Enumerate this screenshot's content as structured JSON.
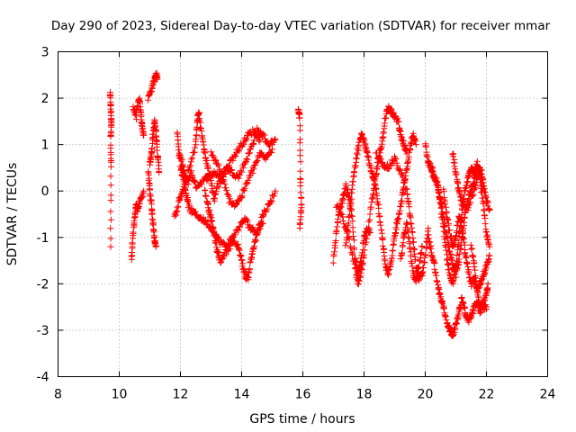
{
  "chart_data": {
    "type": "scatter",
    "title": "Day 290 of 2023, Sidereal Day-to-day VTEC variation (SDTVAR) for receiver mmar",
    "xlabel": "GPS time / hours",
    "ylabel": "SDTVAR / TECUs",
    "xlim": [
      8,
      24
    ],
    "ylim": [
      -4,
      3
    ],
    "xticks": [
      8,
      10,
      12,
      14,
      16,
      18,
      20,
      22,
      24
    ],
    "yticks": [
      -4,
      -3,
      -2,
      -1,
      0,
      1,
      2,
      3
    ],
    "grid": true,
    "marker": "+",
    "color": "#ff0000",
    "traces": [
      [
        [
          9.7,
          2.1
        ],
        [
          9.72,
          1.8
        ],
        [
          9.74,
          1.5
        ],
        [
          9.72,
          1.2
        ],
        [
          9.73,
          0.5
        ],
        [
          9.72,
          -1.2
        ]
      ],
      [
        [
          10.4,
          -1.5
        ],
        [
          10.45,
          -1.0
        ],
        [
          10.5,
          -0.6
        ],
        [
          10.55,
          -0.3
        ],
        [
          10.6,
          -0.4
        ],
        [
          10.7,
          -0.2
        ],
        [
          10.8,
          0.0
        ]
      ],
      [
        [
          10.45,
          1.8
        ],
        [
          10.55,
          1.6
        ],
        [
          10.65,
          2.0
        ],
        [
          10.7,
          1.7
        ],
        [
          10.75,
          1.4
        ],
        [
          10.8,
          1.2
        ]
      ],
      [
        [
          10.95,
          0.4
        ],
        [
          11.0,
          0.0
        ],
        [
          11.05,
          -0.3
        ],
        [
          11.1,
          -0.7
        ],
        [
          11.15,
          -1.0
        ],
        [
          11.2,
          -1.2
        ]
      ],
      [
        [
          10.95,
          2.0
        ],
        [
          11.05,
          2.2
        ],
        [
          11.15,
          2.4
        ],
        [
          11.2,
          2.5
        ],
        [
          11.25,
          2.45
        ]
      ],
      [
        [
          11.0,
          0.6
        ],
        [
          11.05,
          0.8
        ],
        [
          11.1,
          1.2
        ],
        [
          11.15,
          1.5
        ],
        [
          11.2,
          1.3
        ],
        [
          11.25,
          0.8
        ],
        [
          11.3,
          0.4
        ]
      ],
      [
        [
          11.9,
          1.3
        ],
        [
          11.95,
          0.8
        ],
        [
          12.05,
          0.6
        ],
        [
          12.15,
          0.3
        ],
        [
          12.25,
          0.2
        ],
        [
          12.35,
          0.4
        ],
        [
          12.5,
          0.1
        ],
        [
          12.7,
          0.2
        ],
        [
          12.9,
          0.3
        ],
        [
          13.1,
          0.4
        ],
        [
          13.3,
          0.3
        ],
        [
          13.5,
          0.5
        ],
        [
          13.7,
          0.4
        ],
        [
          13.9,
          0.3
        ],
        [
          14.1,
          0.6
        ],
        [
          14.3,
          0.9
        ],
        [
          14.5,
          1.3
        ],
        [
          14.7,
          1.2
        ],
        [
          14.9,
          1.0
        ],
        [
          15.1,
          1.1
        ]
      ],
      [
        [
          11.8,
          -0.6
        ],
        [
          11.95,
          -0.2
        ],
        [
          12.1,
          0.0
        ],
        [
          12.3,
          0.5
        ],
        [
          12.5,
          1.0
        ],
        [
          12.55,
          1.5
        ],
        [
          12.6,
          1.7
        ],
        [
          12.7,
          1.2
        ],
        [
          12.8,
          0.8
        ],
        [
          12.9,
          0.5
        ],
        [
          13.0,
          0.2
        ],
        [
          13.1,
          -0.2
        ],
        [
          13.2,
          0.1
        ],
        [
          13.4,
          0.3
        ],
        [
          13.6,
          0.6
        ],
        [
          13.8,
          0.8
        ],
        [
          14.0,
          1.0
        ],
        [
          14.2,
          1.2
        ],
        [
          14.4,
          1.3
        ],
        [
          14.6,
          1.1
        ]
      ],
      [
        [
          12.0,
          0.5
        ],
        [
          12.1,
          0.3
        ],
        [
          12.2,
          -0.1
        ],
        [
          12.3,
          -0.4
        ],
        [
          12.5,
          -0.5
        ],
        [
          12.7,
          -0.6
        ],
        [
          12.9,
          -0.7
        ],
        [
          13.1,
          -0.9
        ],
        [
          13.3,
          -1.1
        ],
        [
          13.5,
          -1.2
        ],
        [
          13.7,
          -1.0
        ],
        [
          13.9,
          -0.8
        ],
        [
          14.1,
          -0.6
        ],
        [
          14.3,
          -0.8
        ],
        [
          14.5,
          -0.9
        ],
        [
          14.7,
          -0.5
        ],
        [
          14.9,
          -0.3
        ],
        [
          15.1,
          0.0
        ]
      ],
      [
        [
          12.8,
          0.0
        ],
        [
          12.9,
          -0.3
        ],
        [
          13.0,
          -0.6
        ],
        [
          13.1,
          -0.9
        ],
        [
          13.2,
          -1.3
        ],
        [
          13.3,
          -1.5
        ],
        [
          13.5,
          -1.3
        ],
        [
          13.7,
          -1.1
        ],
        [
          13.9,
          -1.2
        ],
        [
          14.0,
          -1.5
        ],
        [
          14.1,
          -1.8
        ],
        [
          14.2,
          -1.9
        ],
        [
          14.3,
          -1.5
        ],
        [
          14.4,
          -1.2
        ],
        [
          14.5,
          -0.9
        ],
        [
          14.7,
          -0.7
        ]
      ],
      [
        [
          13.0,
          0.8
        ],
        [
          13.2,
          0.6
        ],
        [
          13.4,
          0.2
        ],
        [
          13.6,
          -0.2
        ],
        [
          13.8,
          -0.3
        ],
        [
          14.0,
          -0.1
        ],
        [
          14.2,
          0.2
        ],
        [
          14.4,
          0.5
        ],
        [
          14.6,
          0.8
        ],
        [
          14.8,
          0.7
        ],
        [
          15.0,
          0.9
        ]
      ],
      [
        [
          15.85,
          1.8
        ],
        [
          15.9,
          1.6
        ],
        [
          15.92,
          0.3
        ],
        [
          15.95,
          -0.4
        ],
        [
          15.9,
          -0.8
        ]
      ],
      [
        [
          17.0,
          -1.5
        ],
        [
          17.1,
          -0.9
        ],
        [
          17.2,
          -0.4
        ],
        [
          17.3,
          -0.2
        ],
        [
          17.4,
          0.1
        ],
        [
          17.5,
          -0.1
        ],
        [
          17.6,
          -0.5
        ],
        [
          17.7,
          -1.4
        ],
        [
          17.8,
          -1.8
        ],
        [
          17.9,
          -1.5
        ],
        [
          18.0,
          -1.0
        ],
        [
          18.1,
          -0.8
        ],
        [
          18.2,
          -0.9
        ]
      ],
      [
        [
          17.1,
          -0.3
        ],
        [
          17.3,
          -0.6
        ],
        [
          17.5,
          -1.0
        ],
        [
          17.7,
          -1.6
        ],
        [
          17.8,
          -2.0
        ],
        [
          17.9,
          -1.8
        ],
        [
          18.0,
          -1.4
        ],
        [
          18.2,
          -0.5
        ],
        [
          18.3,
          0.0
        ],
        [
          18.4,
          0.4
        ],
        [
          18.5,
          0.8
        ],
        [
          18.6,
          1.1
        ],
        [
          18.7,
          1.6
        ],
        [
          18.8,
          1.8
        ],
        [
          18.9,
          1.7
        ],
        [
          19.0,
          1.6
        ],
        [
          19.1,
          1.5
        ],
        [
          19.2,
          1.2
        ],
        [
          19.3,
          1.0
        ],
        [
          19.4,
          0.8
        ]
      ],
      [
        [
          17.4,
          -1.2
        ],
        [
          17.5,
          -0.6
        ],
        [
          17.6,
          0.0
        ],
        [
          17.7,
          0.5
        ],
        [
          17.8,
          0.9
        ],
        [
          17.9,
          1.2
        ],
        [
          18.0,
          1.1
        ],
        [
          18.1,
          0.8
        ],
        [
          18.2,
          0.5
        ],
        [
          18.3,
          0.3
        ],
        [
          18.4,
          0.0
        ],
        [
          18.5,
          -0.5
        ],
        [
          18.6,
          -1.0
        ],
        [
          18.7,
          -1.6
        ],
        [
          18.8,
          -1.8
        ],
        [
          18.9,
          -1.5
        ],
        [
          19.0,
          -1.0
        ],
        [
          19.1,
          -0.6
        ],
        [
          19.2,
          -0.3
        ],
        [
          19.3,
          0.1
        ],
        [
          19.4,
          0.5
        ],
        [
          19.5,
          0.9
        ],
        [
          19.6,
          1.2
        ],
        [
          19.7,
          1.0
        ]
      ],
      [
        [
          18.4,
          0.8
        ],
        [
          18.6,
          0.6
        ],
        [
          18.8,
          0.5
        ],
        [
          19.0,
          0.7
        ],
        [
          19.2,
          0.4
        ],
        [
          19.4,
          0.0
        ],
        [
          19.5,
          -0.5
        ],
        [
          19.6,
          -1.0
        ],
        [
          19.7,
          -1.6
        ],
        [
          19.8,
          -1.9
        ],
        [
          19.9,
          -1.8
        ],
        [
          20.0,
          -1.4
        ],
        [
          20.1,
          -0.8
        ]
      ],
      [
        [
          19.2,
          -1.5
        ],
        [
          19.3,
          -1.0
        ],
        [
          19.4,
          -0.7
        ],
        [
          19.5,
          -1.2
        ],
        [
          19.6,
          -1.8
        ],
        [
          19.7,
          -1.9
        ],
        [
          19.8,
          -1.6
        ],
        [
          19.9,
          -1.2
        ]
      ],
      [
        [
          20.0,
          1.0
        ],
        [
          20.1,
          0.6
        ],
        [
          20.2,
          0.5
        ],
        [
          20.3,
          0.3
        ],
        [
          20.4,
          0.1
        ],
        [
          20.5,
          -0.2
        ],
        [
          20.6,
          -0.6
        ],
        [
          20.7,
          -1.0
        ],
        [
          20.8,
          -1.3
        ],
        [
          20.9,
          -1.6
        ],
        [
          21.0,
          -1.8
        ],
        [
          21.1,
          -1.5
        ],
        [
          21.2,
          -1.0
        ],
        [
          21.3,
          -0.5
        ],
        [
          21.4,
          -0.2
        ],
        [
          21.5,
          0.0
        ],
        [
          21.6,
          0.2
        ],
        [
          21.7,
          0.5
        ],
        [
          21.8,
          0.3
        ],
        [
          21.9,
          0.0
        ]
      ],
      [
        [
          20.1,
          -1.0
        ],
        [
          20.2,
          -1.3
        ],
        [
          20.3,
          -1.6
        ],
        [
          20.4,
          -2.0
        ],
        [
          20.5,
          -2.3
        ],
        [
          20.6,
          -2.5
        ],
        [
          20.7,
          -2.8
        ],
        [
          20.8,
          -3.0
        ],
        [
          20.9,
          -3.1
        ],
        [
          21.0,
          -2.9
        ],
        [
          21.1,
          -2.6
        ],
        [
          21.2,
          -2.3
        ],
        [
          21.3,
          -2.6
        ],
        [
          21.4,
          -2.8
        ],
        [
          21.5,
          -2.7
        ],
        [
          21.6,
          -2.5
        ],
        [
          21.7,
          -2.4
        ],
        [
          21.8,
          -2.6
        ],
        [
          21.9,
          -2.5
        ],
        [
          22.0,
          -2.5
        ]
      ],
      [
        [
          20.2,
          0.4
        ],
        [
          20.4,
          0.2
        ],
        [
          20.5,
          -0.3
        ],
        [
          20.6,
          -0.8
        ],
        [
          20.7,
          -1.4
        ],
        [
          20.8,
          -1.8
        ],
        [
          20.9,
          -2.0
        ],
        [
          21.0,
          -1.6
        ],
        [
          21.1,
          -1.0
        ],
        [
          21.2,
          -0.4
        ],
        [
          21.3,
          0.0
        ],
        [
          21.4,
          0.3
        ],
        [
          21.5,
          0.5
        ],
        [
          21.6,
          0.4
        ],
        [
          21.7,
          0.6
        ],
        [
          21.8,
          0.2
        ],
        [
          21.9,
          -0.3
        ],
        [
          22.0,
          -0.9
        ],
        [
          22.1,
          -1.2
        ]
      ],
      [
        [
          20.6,
          0.0
        ],
        [
          20.7,
          -0.5
        ],
        [
          20.8,
          -0.9
        ],
        [
          20.9,
          -1.2
        ],
        [
          21.0,
          -1.0
        ],
        [
          21.1,
          -0.5
        ],
        [
          21.2,
          -0.8
        ],
        [
          21.3,
          -1.3
        ],
        [
          21.4,
          -1.7
        ],
        [
          21.5,
          -2.0
        ],
        [
          21.6,
          -1.9
        ],
        [
          21.7,
          -2.1
        ],
        [
          21.8,
          -2.0
        ],
        [
          21.9,
          -1.8
        ],
        [
          22.0,
          -1.6
        ],
        [
          22.1,
          -1.4
        ]
      ],
      [
        [
          20.9,
          0.8
        ],
        [
          21.0,
          0.4
        ],
        [
          21.1,
          0.0
        ],
        [
          21.2,
          -0.3
        ],
        [
          21.4,
          -0.4
        ],
        [
          21.6,
          0.0
        ],
        [
          21.7,
          0.3
        ],
        [
          21.8,
          0.5
        ],
        [
          21.9,
          0.2
        ],
        [
          22.0,
          -0.2
        ],
        [
          22.1,
          -0.4
        ]
      ],
      [
        [
          21.5,
          -1.2
        ],
        [
          21.6,
          -1.6
        ],
        [
          21.7,
          -2.2
        ],
        [
          21.8,
          -2.5
        ],
        [
          21.9,
          -2.4
        ],
        [
          22.0,
          -2.2
        ],
        [
          22.05,
          -2.0
        ]
      ]
    ]
  }
}
